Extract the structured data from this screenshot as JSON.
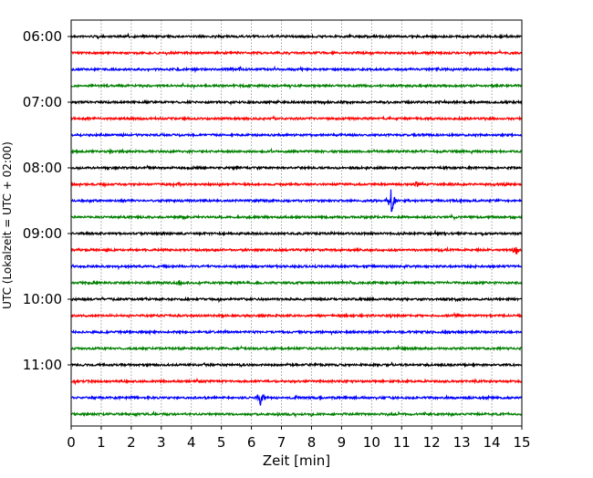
{
  "chart_data": {
    "type": "line",
    "subtype": "helicorder",
    "xlabel": "Zeit  [min]",
    "ylabel": "UTC (Lokalzeit = UTC + 02:00)",
    "xlim": [
      0,
      15
    ],
    "xticks": [
      "0",
      "1",
      "2",
      "3",
      "4",
      "5",
      "6",
      "7",
      "8",
      "9",
      "10",
      "11",
      "12",
      "13",
      "14",
      "15"
    ],
    "yticks": [
      "06:00",
      "07:00",
      "08:00",
      "09:00",
      "10:00",
      "11:00"
    ],
    "grid": "vertical dotted at each minute",
    "trace_interval_min": 15,
    "trace_count": 24,
    "start_time": "06:00",
    "colors": [
      "#000000",
      "#ff0000",
      "#0000ff",
      "#008000"
    ],
    "events": [
      {
        "trace": 2,
        "minute": 5.6,
        "amp": 4
      },
      {
        "trace": 3,
        "minute": 1.2,
        "amp": 2
      },
      {
        "trace": 6,
        "minute": 1.7,
        "amp": 2.5
      },
      {
        "trace": 7,
        "minute": 1.3,
        "amp": 2
      },
      {
        "trace": 8,
        "minute": 3.0,
        "amp": 2
      },
      {
        "trace": 8,
        "minute": 5.5,
        "amp": 3
      },
      {
        "trace": 9,
        "minute": 3.6,
        "amp": 3
      },
      {
        "trace": 9,
        "minute": 11.5,
        "amp": 4
      },
      {
        "trace": 10,
        "minute": 10.65,
        "amp": 16
      },
      {
        "trace": 11,
        "minute": 3.8,
        "amp": 3
      },
      {
        "trace": 13,
        "minute": 14.8,
        "amp": 8
      },
      {
        "trace": 15,
        "minute": 3.6,
        "amp": 4
      },
      {
        "trace": 22,
        "minute": 6.3,
        "amp": 10
      }
    ]
  }
}
